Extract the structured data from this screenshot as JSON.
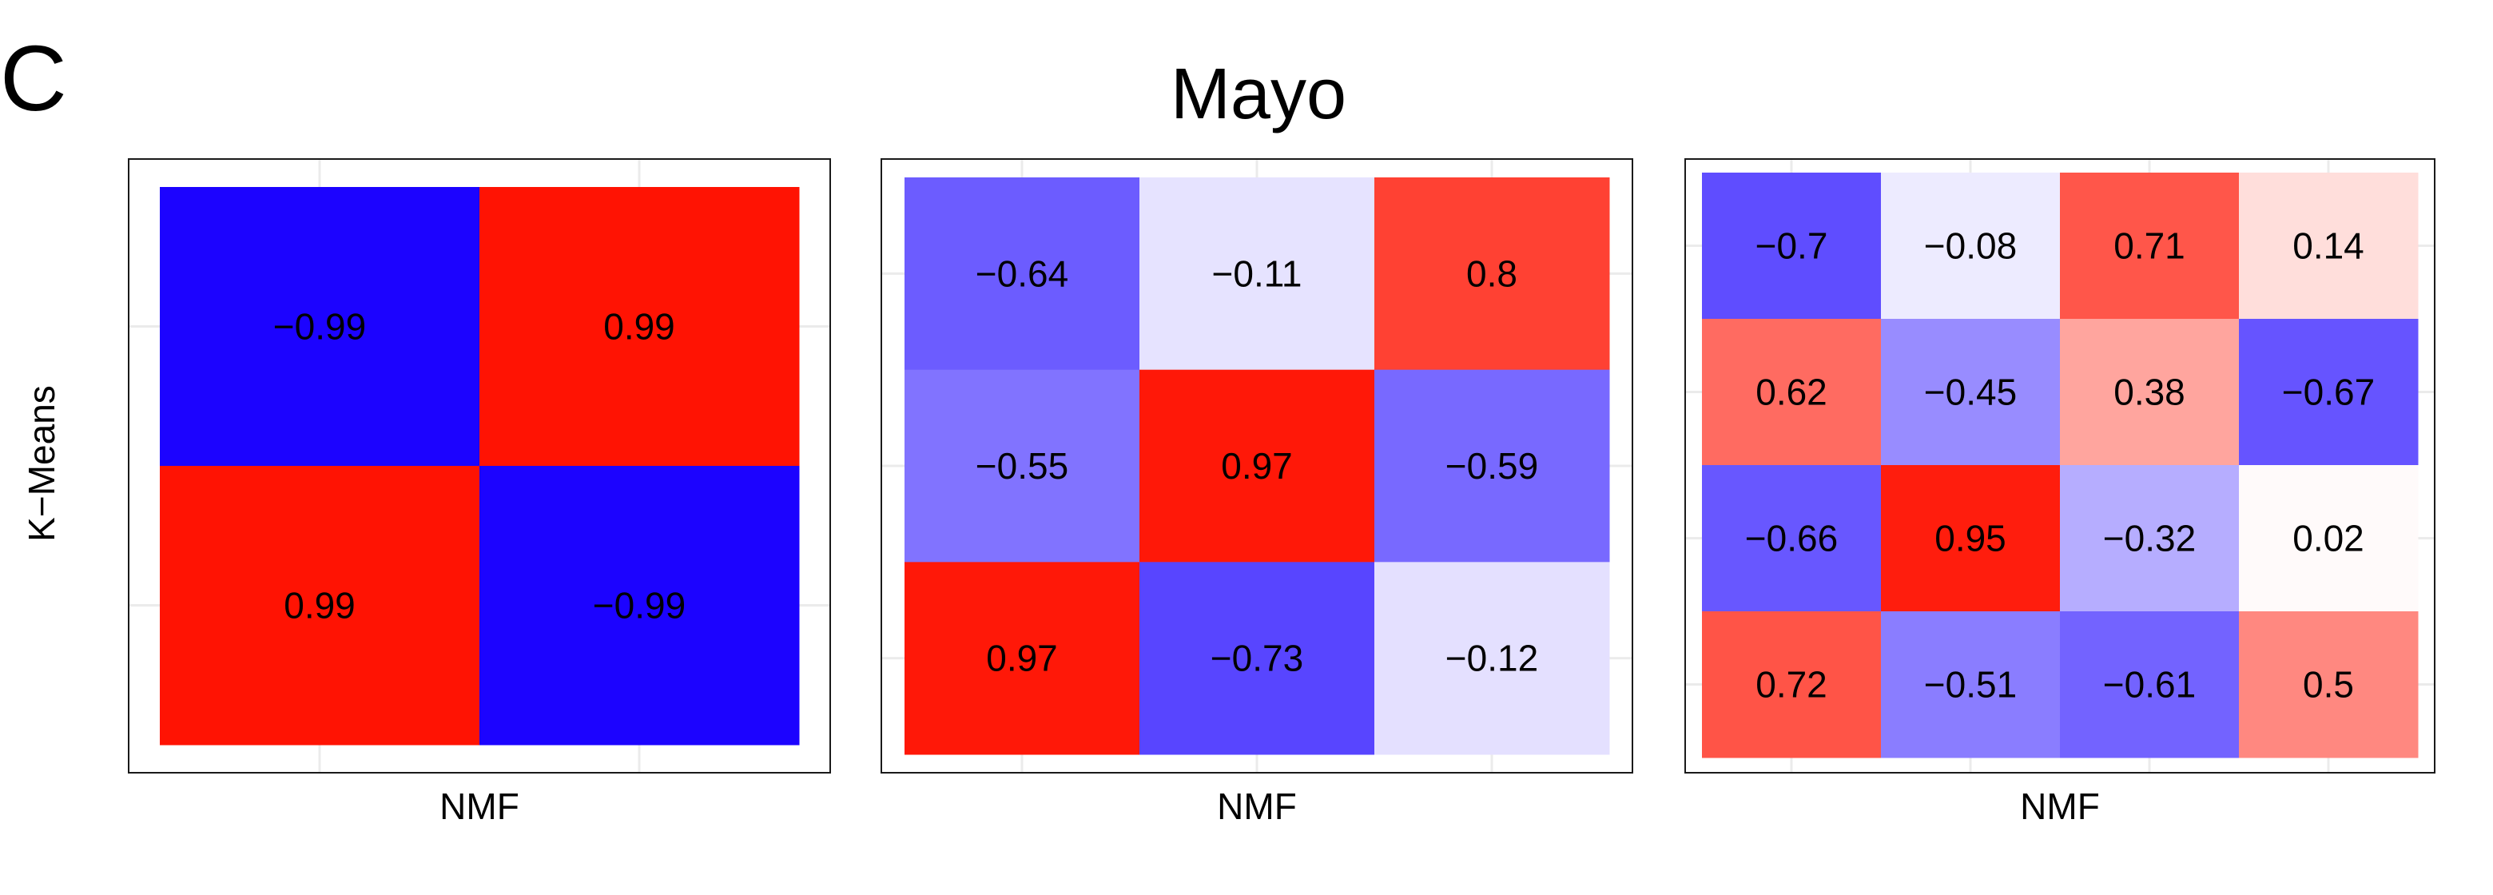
{
  "panel_label": "C",
  "title": "Mayo",
  "ylabel": "K−Means",
  "chart_data": [
    {
      "type": "heatmap",
      "xlabel": "NMF",
      "ylabel": "K−Means",
      "rows": 2,
      "cols": 2,
      "values": [
        [
          -0.99,
          0.99
        ],
        [
          0.99,
          -0.99
        ]
      ],
      "labels": [
        [
          "−0.99",
          "0.99"
        ],
        [
          "0.99",
          "−0.99"
        ]
      ],
      "color_scale": {
        "negative": "#1a00ff",
        "zero": "#ffffff",
        "positive": "#ff1100",
        "range": [
          -1,
          1
        ]
      }
    },
    {
      "type": "heatmap",
      "xlabel": "NMF",
      "rows": 3,
      "cols": 3,
      "values": [
        [
          -0.64,
          -0.11,
          0.8
        ],
        [
          -0.55,
          0.97,
          -0.59
        ],
        [
          0.97,
          -0.73,
          -0.12
        ]
      ],
      "labels": [
        [
          "−0.64",
          "−0.11",
          "0.8"
        ],
        [
          "−0.55",
          "0.97",
          "−0.59"
        ],
        [
          "0.97",
          "−0.73",
          "−0.12"
        ]
      ],
      "color_scale": {
        "negative": "#1a00ff",
        "zero": "#ffffff",
        "positive": "#ff1100",
        "range": [
          -1,
          1
        ]
      }
    },
    {
      "type": "heatmap",
      "xlabel": "NMF",
      "rows": 4,
      "cols": 4,
      "values": [
        [
          -0.7,
          -0.08,
          0.71,
          0.14
        ],
        [
          0.62,
          -0.45,
          0.38,
          -0.67
        ],
        [
          -0.66,
          0.95,
          -0.32,
          0.02
        ],
        [
          0.72,
          -0.51,
          -0.61,
          0.5
        ]
      ],
      "labels": [
        [
          "−0.7",
          "−0.08",
          "0.71",
          "0.14"
        ],
        [
          "0.62",
          "−0.45",
          "0.38",
          "−0.67"
        ],
        [
          "−0.66",
          "0.95",
          "−0.32",
          "0.02"
        ],
        [
          "0.72",
          "−0.51",
          "−0.61",
          "0.5"
        ]
      ],
      "color_scale": {
        "negative": "#1a00ff",
        "zero": "#ffffff",
        "positive": "#ff1100",
        "range": [
          -1,
          1
        ]
      }
    }
  ]
}
